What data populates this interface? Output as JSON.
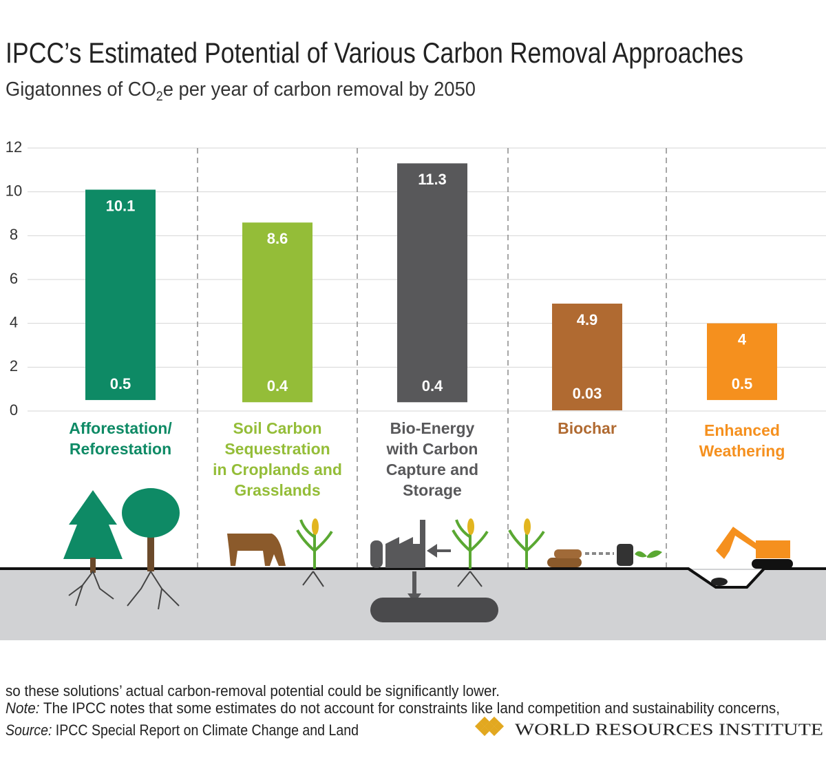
{
  "chart_data": {
    "type": "range_bar",
    "title": "IPCC’s Estimated Potential of Various Carbon Removal Approaches",
    "subtitle": [
      "Gigatonnes of CO",
      "2",
      "e per year of carbon removal by 2050"
    ],
    "categories": [
      [
        "Afforestation/",
        "Reforestation"
      ],
      [
        "Soil Carbon",
        "Sequestration",
        "in Croplands and",
        "Grasslands"
      ],
      [
        "Bio-Energy",
        "with Carbon",
        "Capture and",
        "Storage"
      ],
      [
        "Biochar"
      ],
      [
        "Enhanced",
        "Weathering"
      ]
    ],
    "low": [
      0.5,
      0.4,
      0.4,
      0.03,
      0.5
    ],
    "high": [
      10.1,
      8.6,
      11.3,
      4.9,
      4
    ],
    "colors": [
      "#0e8a65",
      "#94bd38",
      "#58585a",
      "#b06a31",
      "#f5901e"
    ],
    "ylim": [
      0,
      12
    ],
    "yticks": [
      0,
      2,
      4,
      6,
      8,
      10,
      12
    ],
    "grid": true,
    "note": {
      "label": "Note:",
      "lines": [
        " The IPCC notes that some estimates do not account for constraints like land competition and sustainability concerns,",
        "so these solutions’ actual carbon-removal potential could be significantly lower."
      ]
    },
    "source": {
      "label": "Source:",
      "text": " IPCC Special Report on Climate Change and Land"
    },
    "logo": "WORLD RESOURCES INSTITUTE"
  }
}
